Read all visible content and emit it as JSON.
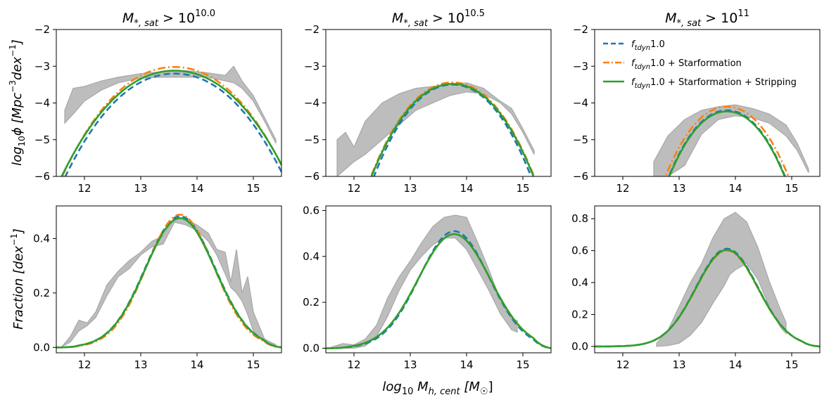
{
  "figure": {
    "xlabel": "log₁₀ M_{h, cent} [M_☉]",
    "xlabel_parts": {
      "main": "log",
      "sub1": "10",
      "mid": " M",
      "sub2": "h, cent",
      "bracket_open": " [M",
      "sub3": "☉",
      "bracket_close": "]"
    }
  },
  "row_labels": {
    "top": {
      "main": "log",
      "sub": "10",
      "rest": "ϕ [Mpc",
      "sup": "−3",
      "rest2": "dex",
      "sup2": "−1",
      "close": "]"
    },
    "bottom": {
      "main": "Fraction [dex",
      "sup": "−1",
      "close": "]"
    }
  },
  "titles": [
    {
      "main": "M",
      "sub": "*, sat",
      "op": " > 10",
      "sup": "10.0"
    },
    {
      "main": "M",
      "sub": "*, sat",
      "op": " > 10",
      "sup": "10.5"
    },
    {
      "main": "M",
      "sub": "*, sat",
      "op": " > 10",
      "sup": "11"
    }
  ],
  "legend": [
    {
      "sym": "f",
      "sub": "tdyn",
      "text": "1.0",
      "color": "#1f77b4",
      "style": "dashed"
    },
    {
      "sym": "f",
      "sub": "tdyn",
      "text": "1.0 + Starformation",
      "color": "#ff7f0e",
      "style": "dashdot"
    },
    {
      "sym": "f",
      "sub": "tdyn",
      "text": "1.0 + Starformation + Stripping",
      "color": "#2ca02c",
      "style": "solid"
    }
  ],
  "colors": {
    "band": "#bdbdbd",
    "band_edge": "#a8a8a8"
  },
  "chart_data": [
    {
      "type": "line",
      "panel": "top-1",
      "xlim": [
        11.5,
        15.5
      ],
      "ylim": [
        -6,
        -2
      ],
      "xticks": [
        12,
        13,
        14,
        15
      ],
      "yticks": [
        -6,
        -5,
        -4,
        -3,
        -2
      ],
      "params": {
        "mu": 13.6,
        "lo": 11.5,
        "hi": 15.5,
        "rp": 5.0
      },
      "series": [
        {
          "name": "f_tdyn 1.0",
          "peak": -3.2,
          "sigma": 0.95
        },
        {
          "name": "f_tdyn 1.0 + Starformation",
          "peak": -3.02,
          "sigma": 0.95
        },
        {
          "name": "f_tdyn 1.0 + Starformation + Stripping",
          "peak": -3.12,
          "sigma": 0.97
        }
      ],
      "band": {
        "x": [
          11.65,
          11.8,
          12.0,
          12.3,
          12.6,
          13.0,
          13.4,
          13.8,
          14.2,
          14.5,
          14.65,
          14.8,
          15.0,
          15.2,
          15.4
        ],
        "low": [
          -4.55,
          -4.3,
          -3.95,
          -3.65,
          -3.45,
          -3.32,
          -3.3,
          -3.3,
          -3.3,
          -3.4,
          -3.45,
          -3.6,
          -3.95,
          -4.5,
          -5.1
        ],
        "high": [
          -4.2,
          -3.6,
          -3.55,
          -3.4,
          -3.3,
          -3.2,
          -3.15,
          -3.12,
          -3.18,
          -3.25,
          -3.0,
          -3.4,
          -3.8,
          -4.4,
          -5.0
        ]
      }
    },
    {
      "type": "line",
      "panel": "top-2",
      "xlim": [
        11.5,
        15.5
      ],
      "ylim": [
        -6,
        -2
      ],
      "xticks": [
        12,
        13,
        14,
        15
      ],
      "yticks": [
        -6,
        -5,
        -4,
        -3,
        -2
      ],
      "params": {
        "mu": 13.75,
        "lo": 11.5,
        "hi": 15.5,
        "rp": 5.0
      },
      "series": [
        {
          "name": "f_tdyn 1.0",
          "peak": -3.5,
          "sigma": 0.72
        },
        {
          "name": "f_tdyn 1.0 + Starformation",
          "peak": -3.44,
          "sigma": 0.74
        },
        {
          "name": "f_tdyn 1.0 + Starformation + Stripping",
          "peak": -3.48,
          "sigma": 0.74
        }
      ],
      "band": {
        "x": [
          11.7,
          11.85,
          12.0,
          12.2,
          12.5,
          12.8,
          13.1,
          13.4,
          13.7,
          14.0,
          14.3,
          14.6,
          14.8,
          15.0,
          15.2
        ],
        "low": [
          -6.0,
          -5.8,
          -5.6,
          -5.4,
          -5.0,
          -4.6,
          -4.2,
          -4.0,
          -3.8,
          -3.7,
          -3.75,
          -4.0,
          -4.3,
          -4.8,
          -5.4
        ],
        "high": [
          -5.0,
          -4.8,
          -5.2,
          -4.5,
          -4.0,
          -3.75,
          -3.6,
          -3.55,
          -3.5,
          -3.45,
          -3.6,
          -3.95,
          -4.15,
          -4.7,
          -5.3
        ]
      }
    },
    {
      "type": "line",
      "panel": "top-3",
      "xlim": [
        11.5,
        15.5
      ],
      "ylim": [
        -6,
        -2
      ],
      "xticks": [
        12,
        13,
        14,
        15
      ],
      "yticks": [
        -6,
        -5,
        -4,
        -3,
        -2
      ],
      "params": {
        "mu": 13.85,
        "lo": 11.5,
        "hi": 15.5,
        "rp": 5.0
      },
      "series": [
        {
          "name": "f_tdyn 1.0",
          "peak": -4.2,
          "sigma": 0.62
        },
        {
          "name": "f_tdyn 1.0 + Starformation",
          "peak": -4.1,
          "sigma": 0.64
        },
        {
          "name": "f_tdyn 1.0 + Starformation + Stripping",
          "peak": -4.23,
          "sigma": 0.62
        }
      ],
      "band": {
        "x": [
          12.55,
          12.8,
          13.1,
          13.4,
          13.7,
          14.0,
          14.3,
          14.6,
          14.9,
          15.1,
          15.3
        ],
        "low": [
          -6.0,
          -6.0,
          -5.7,
          -4.85,
          -4.45,
          -4.35,
          -4.4,
          -4.55,
          -4.9,
          -5.3,
          -5.9
        ],
        "high": [
          -5.6,
          -4.9,
          -4.45,
          -4.2,
          -4.1,
          -4.05,
          -4.15,
          -4.3,
          -4.6,
          -5.1,
          -5.8
        ]
      }
    },
    {
      "type": "line",
      "panel": "bottom-1",
      "xlim": [
        11.5,
        15.5
      ],
      "ylim": [
        -0.02,
        0.52
      ],
      "xticks": [
        12,
        13,
        14,
        15
      ],
      "yticks": [
        0.0,
        0.2,
        0.4
      ],
      "params": {
        "mu": 13.7,
        "lo": 11.6,
        "hi": 15.5,
        "rp": 5.0
      },
      "series": [
        {
          "name": "f_tdyn 1.0",
          "peak": 0.482,
          "sigma": 0.62
        },
        {
          "name": "f_tdyn 1.0 + Starformation",
          "peak": 0.488,
          "sigma": 0.6
        },
        {
          "name": "f_tdyn 1.0 + Starformation + Stripping",
          "peak": 0.475,
          "sigma": 0.62
        }
      ],
      "band": {
        "x": [
          11.6,
          11.75,
          11.9,
          12.05,
          12.2,
          12.4,
          12.6,
          12.8,
          13.0,
          13.2,
          13.4,
          13.6,
          13.8,
          14.0,
          14.2,
          14.35,
          14.5,
          14.6,
          14.7,
          14.8,
          14.9,
          15.0,
          15.2,
          15.4
        ],
        "low": [
          0.002,
          0.02,
          0.06,
          0.08,
          0.11,
          0.19,
          0.26,
          0.29,
          0.34,
          0.37,
          0.38,
          0.46,
          0.45,
          0.43,
          0.39,
          0.34,
          0.27,
          0.22,
          0.2,
          0.17,
          0.12,
          0.06,
          0.02,
          0.005
        ],
        "high": [
          0.003,
          0.04,
          0.1,
          0.09,
          0.13,
          0.23,
          0.28,
          0.32,
          0.35,
          0.39,
          0.41,
          0.48,
          0.47,
          0.45,
          0.42,
          0.36,
          0.35,
          0.24,
          0.36,
          0.2,
          0.26,
          0.13,
          0.03,
          0.01
        ]
      }
    },
    {
      "type": "line",
      "panel": "bottom-2",
      "xlim": [
        11.5,
        15.5
      ],
      "ylim": [
        -0.02,
        0.62
      ],
      "xticks": [
        12,
        13,
        14,
        15
      ],
      "yticks": [
        0.0,
        0.2,
        0.4,
        0.6
      ],
      "params": {
        "mu": 13.78,
        "lo": 11.6,
        "hi": 15.5,
        "rp": 5.0
      },
      "series": [
        {
          "name": "f_tdyn 1.0",
          "peak": 0.51,
          "sigma": 0.62
        },
        {
          "name": "f_tdyn 1.0 + Starformation",
          "peak": 0.497,
          "sigma": 0.64
        },
        {
          "name": "f_tdyn 1.0 + Starformation + Stripping",
          "peak": 0.497,
          "sigma": 0.64
        }
      ],
      "band": {
        "x": [
          11.6,
          11.8,
          12.0,
          12.2,
          12.4,
          12.6,
          12.8,
          13.0,
          13.2,
          13.4,
          13.6,
          13.8,
          14.0,
          14.2,
          14.4,
          14.6,
          14.8,
          14.9
        ],
        "low": [
          0.0,
          0.0,
          0.0,
          0.01,
          0.05,
          0.14,
          0.25,
          0.34,
          0.4,
          0.45,
          0.48,
          0.48,
          0.43,
          0.34,
          0.25,
          0.15,
          0.08,
          0.07
        ],
        "high": [
          0.005,
          0.02,
          0.015,
          0.04,
          0.1,
          0.22,
          0.31,
          0.38,
          0.46,
          0.53,
          0.57,
          0.58,
          0.57,
          0.46,
          0.34,
          0.21,
          0.13,
          0.12
        ]
      }
    },
    {
      "type": "line",
      "panel": "bottom-3",
      "xlim": [
        11.5,
        15.5
      ],
      "ylim": [
        -0.04,
        0.88
      ],
      "xticks": [
        12,
        13,
        14,
        15
      ],
      "yticks": [
        0.0,
        0.2,
        0.4,
        0.6,
        0.8
      ],
      "params": {
        "mu": 13.85,
        "lo": 11.6,
        "hi": 15.5,
        "rp": 4.5
      },
      "series": [
        {
          "name": "f_tdyn 1.0",
          "peak": 0.612,
          "sigma": 0.55
        },
        {
          "name": "f_tdyn 1.0 + Starformation",
          "peak": 0.6,
          "sigma": 0.55
        },
        {
          "name": "f_tdyn 1.0 + Starformation + Stripping",
          "peak": 0.605,
          "sigma": 0.55
        }
      ],
      "band": {
        "x": [
          12.6,
          12.8,
          13.0,
          13.2,
          13.4,
          13.6,
          13.8,
          13.9,
          14.0,
          14.2,
          14.4,
          14.6,
          14.8,
          14.9
        ],
        "low": [
          0.0,
          0.005,
          0.02,
          0.07,
          0.15,
          0.27,
          0.38,
          0.45,
          0.48,
          0.52,
          0.42,
          0.25,
          0.12,
          0.08
        ],
        "high": [
          0.02,
          0.1,
          0.25,
          0.4,
          0.52,
          0.68,
          0.8,
          0.82,
          0.84,
          0.78,
          0.62,
          0.41,
          0.23,
          0.15
        ]
      }
    }
  ]
}
